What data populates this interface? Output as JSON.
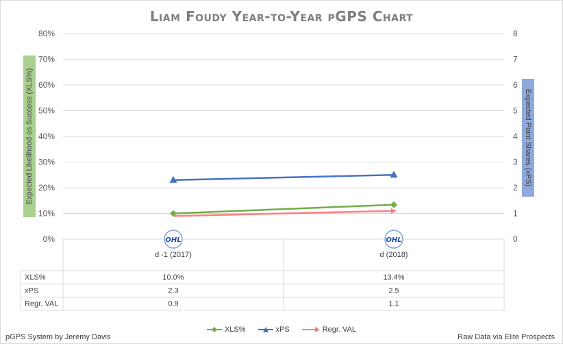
{
  "chart_data": {
    "type": "line",
    "title": "Liam Foudy Year-to-Year pGPS Chart",
    "y_left_label": "Expected Likelihood os Success (XLS%)",
    "y_right_label": "Expected Point Shares (xPS)",
    "y_left_ticks": [
      "0%",
      "10%",
      "20%",
      "30%",
      "40%",
      "50%",
      "60%",
      "70%",
      "80%"
    ],
    "y_right_ticks": [
      "0",
      "1",
      "2",
      "3",
      "4",
      "5",
      "6",
      "7",
      "8"
    ],
    "ylim_left": [
      0,
      80
    ],
    "ylim_right": [
      0,
      8
    ],
    "categories": [
      "d -1 (2017)",
      "d (2018)"
    ],
    "category_logo": "OHL",
    "series": [
      {
        "name": "XLS%",
        "axis": "left",
        "values": [
          10.0,
          13.4
        ],
        "color": "#70ad47",
        "marker": "diamond"
      },
      {
        "name": "xPS",
        "axis": "right",
        "values": [
          2.3,
          2.5
        ],
        "color": "#4472c4",
        "marker": "triangle"
      },
      {
        "name": "Regr. VAL",
        "axis": "right",
        "values": [
          0.9,
          1.1
        ],
        "color": "#ff7c80",
        "marker": "arrow"
      }
    ],
    "table": {
      "rows": [
        {
          "label": "XLS%",
          "values": [
            "10.0%",
            "13.4%"
          ]
        },
        {
          "label": "xPS",
          "values": [
            "2.3",
            "2.5"
          ]
        },
        {
          "label": "Regr. VAL",
          "values": [
            "0.9",
            "1.1"
          ]
        }
      ]
    },
    "legend_position": "bottom",
    "grid": true
  },
  "footer": {
    "left": "pGPS System by Jeremy Davis",
    "right": "Raw Data via Elite Prospects"
  }
}
